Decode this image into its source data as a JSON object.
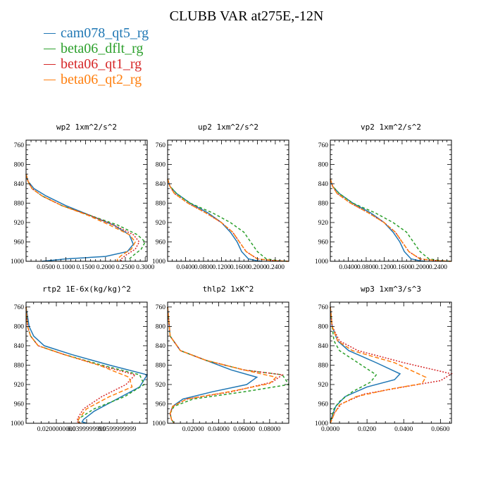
{
  "title": "CLUBB VAR at275E,-12N",
  "legend": [
    {
      "name": "cam078_qt5_rg",
      "color": "#1f77b4"
    },
    {
      "name": "beta06_dflt_rg",
      "color": "#2ca02c"
    },
    {
      "name": "beta06_qt1_rg",
      "color": "#d62728"
    },
    {
      "name": "beta06_qt2_rg",
      "color": "#ff7f0e"
    }
  ],
  "chart_data": [
    {
      "type": "line",
      "title": "wp2  1xm^2/s^2",
      "xlim": [
        0,
        0.305
      ],
      "ylim": [
        1000,
        750
      ],
      "y_reversed": true,
      "xticks": [
        "0.0500",
        "0.1000",
        "0.1500",
        "0.2000",
        "0.2500",
        "0.3000"
      ],
      "xtick_values": [
        0.05,
        0.1,
        0.15,
        0.2,
        0.25,
        0.3
      ],
      "yticks": [
        "760",
        "800",
        "840",
        "880",
        "920",
        "960",
        "1000"
      ],
      "ytick_values": [
        760,
        800,
        840,
        880,
        920,
        960,
        1000
      ],
      "series": [
        {
          "name": "cam078_qt5_rg",
          "color": "#1f77b4",
          "dash": "",
          "x": [
            0.0,
            0.005,
            0.02,
            0.05,
            0.1,
            0.16,
            0.22,
            0.26,
            0.27,
            0.255,
            0.2,
            0.1,
            0.04
          ],
          "y": [
            820,
            835,
            850,
            865,
            885,
            905,
            925,
            945,
            965,
            980,
            990,
            995,
            1000
          ]
        },
        {
          "name": "beta06_dflt_rg",
          "color": "#2ca02c",
          "dash": "4,3",
          "x": [
            0.0,
            0.005,
            0.015,
            0.04,
            0.09,
            0.16,
            0.23,
            0.28,
            0.3,
            0.29,
            0.27,
            0.26,
            0.26
          ],
          "y": [
            820,
            835,
            850,
            865,
            885,
            905,
            925,
            945,
            960,
            975,
            988,
            995,
            1000
          ]
        },
        {
          "name": "beta06_qt1_rg",
          "color": "#d62728",
          "dash": "2,2",
          "x": [
            0.0,
            0.005,
            0.015,
            0.04,
            0.09,
            0.16,
            0.22,
            0.27,
            0.285,
            0.275,
            0.25,
            0.24,
            0.24
          ],
          "y": [
            820,
            835,
            850,
            865,
            885,
            905,
            925,
            945,
            960,
            975,
            988,
            995,
            1000
          ]
        },
        {
          "name": "beta06_qt2_rg",
          "color": "#ff7f0e",
          "dash": "6,3",
          "x": [
            0.0,
            0.005,
            0.015,
            0.04,
            0.09,
            0.155,
            0.21,
            0.26,
            0.275,
            0.265,
            0.24,
            0.23,
            0.23
          ],
          "y": [
            820,
            835,
            850,
            865,
            885,
            905,
            925,
            945,
            960,
            975,
            988,
            995,
            1000
          ]
        }
      ]
    },
    {
      "type": "line",
      "title": "up2  1xm^2/s^2",
      "xlim": [
        0,
        0.27
      ],
      "ylim": [
        1000,
        750
      ],
      "y_reversed": true,
      "xticks": [
        "0.0400",
        "0.0800",
        "0.1200",
        "0.1600",
        "0.2000",
        "0.2400"
      ],
      "xtick_values": [
        0.04,
        0.08,
        0.12,
        0.16,
        0.2,
        0.24
      ],
      "yticks": [
        "760",
        "800",
        "840",
        "880",
        "920",
        "960",
        "1000"
      ],
      "ytick_values": [
        760,
        800,
        840,
        880,
        920,
        960,
        1000
      ],
      "series": [
        {
          "name": "cam078_qt5_rg",
          "color": "#1f77b4",
          "dash": "",
          "x": [
            0.0,
            0.005,
            0.02,
            0.05,
            0.09,
            0.12,
            0.14,
            0.155,
            0.165,
            0.18,
            0.2,
            0.21
          ],
          "y": [
            830,
            845,
            860,
            880,
            900,
            920,
            940,
            960,
            980,
            995,
            999,
            1000
          ]
        },
        {
          "name": "beta06_dflt_rg",
          "color": "#2ca02c",
          "dash": "4,3",
          "x": [
            0.0,
            0.005,
            0.02,
            0.05,
            0.1,
            0.14,
            0.17,
            0.185,
            0.2,
            0.22,
            0.25,
            0.27
          ],
          "y": [
            830,
            845,
            860,
            880,
            900,
            920,
            940,
            960,
            980,
            995,
            999,
            1000
          ]
        },
        {
          "name": "beta06_qt1_rg",
          "color": "#d62728",
          "dash": "2,2",
          "x": [
            0.0,
            0.005,
            0.015,
            0.045,
            0.085,
            0.12,
            0.145,
            0.16,
            0.175,
            0.2,
            0.24,
            0.27
          ],
          "y": [
            830,
            845,
            860,
            880,
            900,
            920,
            940,
            960,
            980,
            995,
            999,
            1000
          ]
        },
        {
          "name": "beta06_qt2_rg",
          "color": "#ff7f0e",
          "dash": "6,3",
          "x": [
            0.0,
            0.005,
            0.015,
            0.045,
            0.085,
            0.12,
            0.145,
            0.16,
            0.175,
            0.2,
            0.24,
            0.27
          ],
          "y": [
            830,
            845,
            860,
            880,
            900,
            920,
            940,
            960,
            980,
            995,
            999,
            1000
          ]
        }
      ]
    },
    {
      "type": "line",
      "title": "vp2  1xm^2/s^2",
      "xlim": [
        0,
        0.27
      ],
      "ylim": [
        1000,
        750
      ],
      "y_reversed": true,
      "xticks": [
        "0.0400",
        "0.0800",
        "0.1200",
        "0.1600",
        "0.2000",
        "0.2400"
      ],
      "xtick_values": [
        0.04,
        0.08,
        0.12,
        0.16,
        0.2,
        0.24
      ],
      "yticks": [
        "760",
        "800",
        "840",
        "880",
        "920",
        "960",
        "1000"
      ],
      "ytick_values": [
        760,
        800,
        840,
        880,
        920,
        960,
        1000
      ],
      "series": [
        {
          "name": "cam078_qt5_rg",
          "color": "#1f77b4",
          "dash": "",
          "x": [
            0.0,
            0.005,
            0.02,
            0.05,
            0.09,
            0.12,
            0.14,
            0.155,
            0.165,
            0.18,
            0.2,
            0.21
          ],
          "y": [
            830,
            845,
            860,
            880,
            900,
            920,
            940,
            960,
            980,
            995,
            999,
            1000
          ]
        },
        {
          "name": "beta06_dflt_rg",
          "color": "#2ca02c",
          "dash": "4,3",
          "x": [
            0.0,
            0.005,
            0.02,
            0.05,
            0.1,
            0.14,
            0.17,
            0.185,
            0.2,
            0.22,
            0.25,
            0.27
          ],
          "y": [
            830,
            845,
            860,
            880,
            900,
            920,
            940,
            960,
            980,
            995,
            999,
            1000
          ]
        },
        {
          "name": "beta06_qt1_rg",
          "color": "#d62728",
          "dash": "2,2",
          "x": [
            0.0,
            0.005,
            0.015,
            0.045,
            0.085,
            0.12,
            0.145,
            0.16,
            0.175,
            0.2,
            0.24,
            0.27
          ],
          "y": [
            830,
            845,
            860,
            880,
            900,
            920,
            940,
            960,
            980,
            995,
            999,
            1000
          ]
        },
        {
          "name": "beta06_qt2_rg",
          "color": "#ff7f0e",
          "dash": "6,3",
          "x": [
            0.0,
            0.005,
            0.015,
            0.045,
            0.085,
            0.12,
            0.145,
            0.16,
            0.175,
            0.2,
            0.24,
            0.27
          ],
          "y": [
            830,
            845,
            860,
            880,
            900,
            920,
            940,
            960,
            980,
            995,
            999,
            1000
          ]
        }
      ]
    },
    {
      "type": "line",
      "title": "rtp2  1E-6x(kg/kg)^2",
      "xlim": [
        0,
        0.08
      ],
      "ylim": [
        1000,
        750
      ],
      "y_reversed": true,
      "xticks": [
        "0.0200000000",
        "0.0399999999",
        "0.0599999999"
      ],
      "xtick_values": [
        0.02,
        0.04,
        0.06
      ],
      "yticks": [
        "760",
        "800",
        "840",
        "880",
        "920",
        "960",
        "1000"
      ],
      "ytick_values": [
        760,
        800,
        840,
        880,
        920,
        960,
        1000
      ],
      "series": [
        {
          "name": "cam078_qt5_rg",
          "color": "#1f77b4",
          "dash": "",
          "x": [
            0.0,
            0.002,
            0.005,
            0.012,
            0.03,
            0.055,
            0.08,
            0.075,
            0.06,
            0.045,
            0.038,
            0.037,
            0.04
          ],
          "y": [
            760,
            800,
            820,
            840,
            858,
            880,
            900,
            925,
            950,
            975,
            992,
            997,
            1000
          ]
        },
        {
          "name": "beta06_dflt_rg",
          "color": "#2ca02c",
          "dash": "4,3",
          "x": [
            0.0,
            0.001,
            0.003,
            0.008,
            0.025,
            0.05,
            0.075,
            0.078,
            0.065,
            0.045,
            0.035,
            0.034,
            0.036
          ],
          "y": [
            760,
            800,
            820,
            840,
            858,
            880,
            900,
            920,
            945,
            970,
            990,
            997,
            1000
          ]
        },
        {
          "name": "beta06_qt1_rg",
          "color": "#d62728",
          "dash": "2,2",
          "x": [
            0.0,
            0.001,
            0.003,
            0.008,
            0.025,
            0.048,
            0.072,
            0.066,
            0.05,
            0.038,
            0.034,
            0.034,
            0.036
          ],
          "y": [
            760,
            800,
            820,
            840,
            858,
            880,
            900,
            920,
            945,
            970,
            990,
            997,
            1000
          ]
        },
        {
          "name": "beta06_qt2_rg",
          "color": "#ff7f0e",
          "dash": "6,3",
          "x": [
            0.0,
            0.001,
            0.003,
            0.008,
            0.025,
            0.048,
            0.068,
            0.07,
            0.055,
            0.04,
            0.035,
            0.034,
            0.036
          ],
          "y": [
            760,
            800,
            820,
            840,
            858,
            880,
            905,
            925,
            945,
            970,
            990,
            997,
            1000
          ]
        }
      ]
    },
    {
      "type": "line",
      "title": "thlp2  1xK^2",
      "xlim": [
        0,
        0.095
      ],
      "ylim": [
        1000,
        750
      ],
      "y_reversed": true,
      "xticks": [
        "0.02000",
        "0.04000",
        "0.06000",
        "0.08000"
      ],
      "xtick_values": [
        0.02,
        0.04,
        0.06,
        0.08
      ],
      "yticks": [
        "760",
        "800",
        "840",
        "880",
        "920",
        "960",
        "1000"
      ],
      "ytick_values": [
        760,
        800,
        840,
        880,
        920,
        960,
        1000
      ],
      "series": [
        {
          "name": "cam078_qt5_rg",
          "color": "#1f77b4",
          "dash": "",
          "x": [
            0.0,
            0.002,
            0.01,
            0.03,
            0.05,
            0.07,
            0.062,
            0.035,
            0.012,
            0.004,
            0.002,
            0.003,
            0.005
          ],
          "y": [
            760,
            820,
            850,
            870,
            890,
            905,
            920,
            935,
            950,
            965,
            980,
            992,
            1000
          ]
        },
        {
          "name": "beta06_dflt_rg",
          "color": "#2ca02c",
          "dash": "4,3",
          "x": [
            0.0,
            0.002,
            0.01,
            0.03,
            0.06,
            0.09,
            0.095,
            0.06,
            0.02,
            0.005,
            0.002,
            0.003,
            0.005
          ],
          "y": [
            760,
            820,
            850,
            870,
            890,
            900,
            920,
            935,
            950,
            965,
            980,
            992,
            1000
          ]
        },
        {
          "name": "beta06_qt1_rg",
          "color": "#d62728",
          "dash": "2,2",
          "x": [
            0.0,
            0.002,
            0.01,
            0.03,
            0.06,
            0.09,
            0.082,
            0.05,
            0.015,
            0.004,
            0.002,
            0.003,
            0.005
          ],
          "y": [
            760,
            820,
            850,
            870,
            890,
            900,
            915,
            935,
            950,
            965,
            980,
            992,
            1000
          ]
        },
        {
          "name": "beta06_qt2_rg",
          "color": "#ff7f0e",
          "dash": "6,3",
          "x": [
            0.0,
            0.002,
            0.01,
            0.03,
            0.06,
            0.085,
            0.08,
            0.048,
            0.015,
            0.004,
            0.002,
            0.003,
            0.005
          ],
          "y": [
            760,
            820,
            850,
            870,
            890,
            905,
            918,
            935,
            950,
            965,
            980,
            992,
            1000
          ]
        }
      ]
    },
    {
      "type": "line",
      "title": "wp3  1xm^3/s^3",
      "xlim": [
        0,
        0.066
      ],
      "ylim": [
        1000,
        750
      ],
      "y_reversed": true,
      "xticks": [
        "0.0000",
        "0.0200",
        "0.0400",
        "0.0600"
      ],
      "xtick_values": [
        0.0,
        0.02,
        0.04,
        0.06
      ],
      "yticks": [
        "760",
        "800",
        "840",
        "880",
        "920",
        "960",
        "1000"
      ],
      "ytick_values": [
        760,
        800,
        840,
        880,
        920,
        960,
        1000
      ],
      "series": [
        {
          "name": "cam078_qt5_rg",
          "color": "#1f77b4",
          "dash": "",
          "x": [
            0.0,
            0.001,
            0.004,
            0.01,
            0.025,
            0.038,
            0.035,
            0.02,
            0.008,
            0.003,
            0.001,
            0.0
          ],
          "y": [
            760,
            800,
            830,
            850,
            875,
            898,
            910,
            925,
            945,
            965,
            985,
            1000
          ]
        },
        {
          "name": "beta06_dflt_rg",
          "color": "#2ca02c",
          "dash": "4,3",
          "x": [
            0.0,
            0.001,
            0.002,
            0.005,
            0.015,
            0.025,
            0.022,
            0.012,
            0.005,
            0.002,
            0.001,
            0.0
          ],
          "y": [
            760,
            800,
            830,
            850,
            875,
            900,
            915,
            935,
            955,
            970,
            985,
            1000
          ]
        },
        {
          "name": "beta06_qt1_rg",
          "color": "#d62728",
          "dash": "2,2",
          "x": [
            0.0,
            0.001,
            0.005,
            0.015,
            0.04,
            0.066,
            0.06,
            0.04,
            0.018,
            0.006,
            0.002,
            0.0
          ],
          "y": [
            760,
            800,
            830,
            850,
            875,
            898,
            912,
            925,
            940,
            960,
            980,
            1000
          ]
        },
        {
          "name": "beta06_qt2_rg",
          "color": "#ff7f0e",
          "dash": "6,3",
          "x": [
            0.0,
            0.001,
            0.004,
            0.012,
            0.035,
            0.052,
            0.05,
            0.032,
            0.014,
            0.005,
            0.002,
            0.0
          ],
          "y": [
            760,
            800,
            830,
            850,
            875,
            905,
            918,
            930,
            945,
            962,
            982,
            1000
          ]
        }
      ]
    }
  ]
}
